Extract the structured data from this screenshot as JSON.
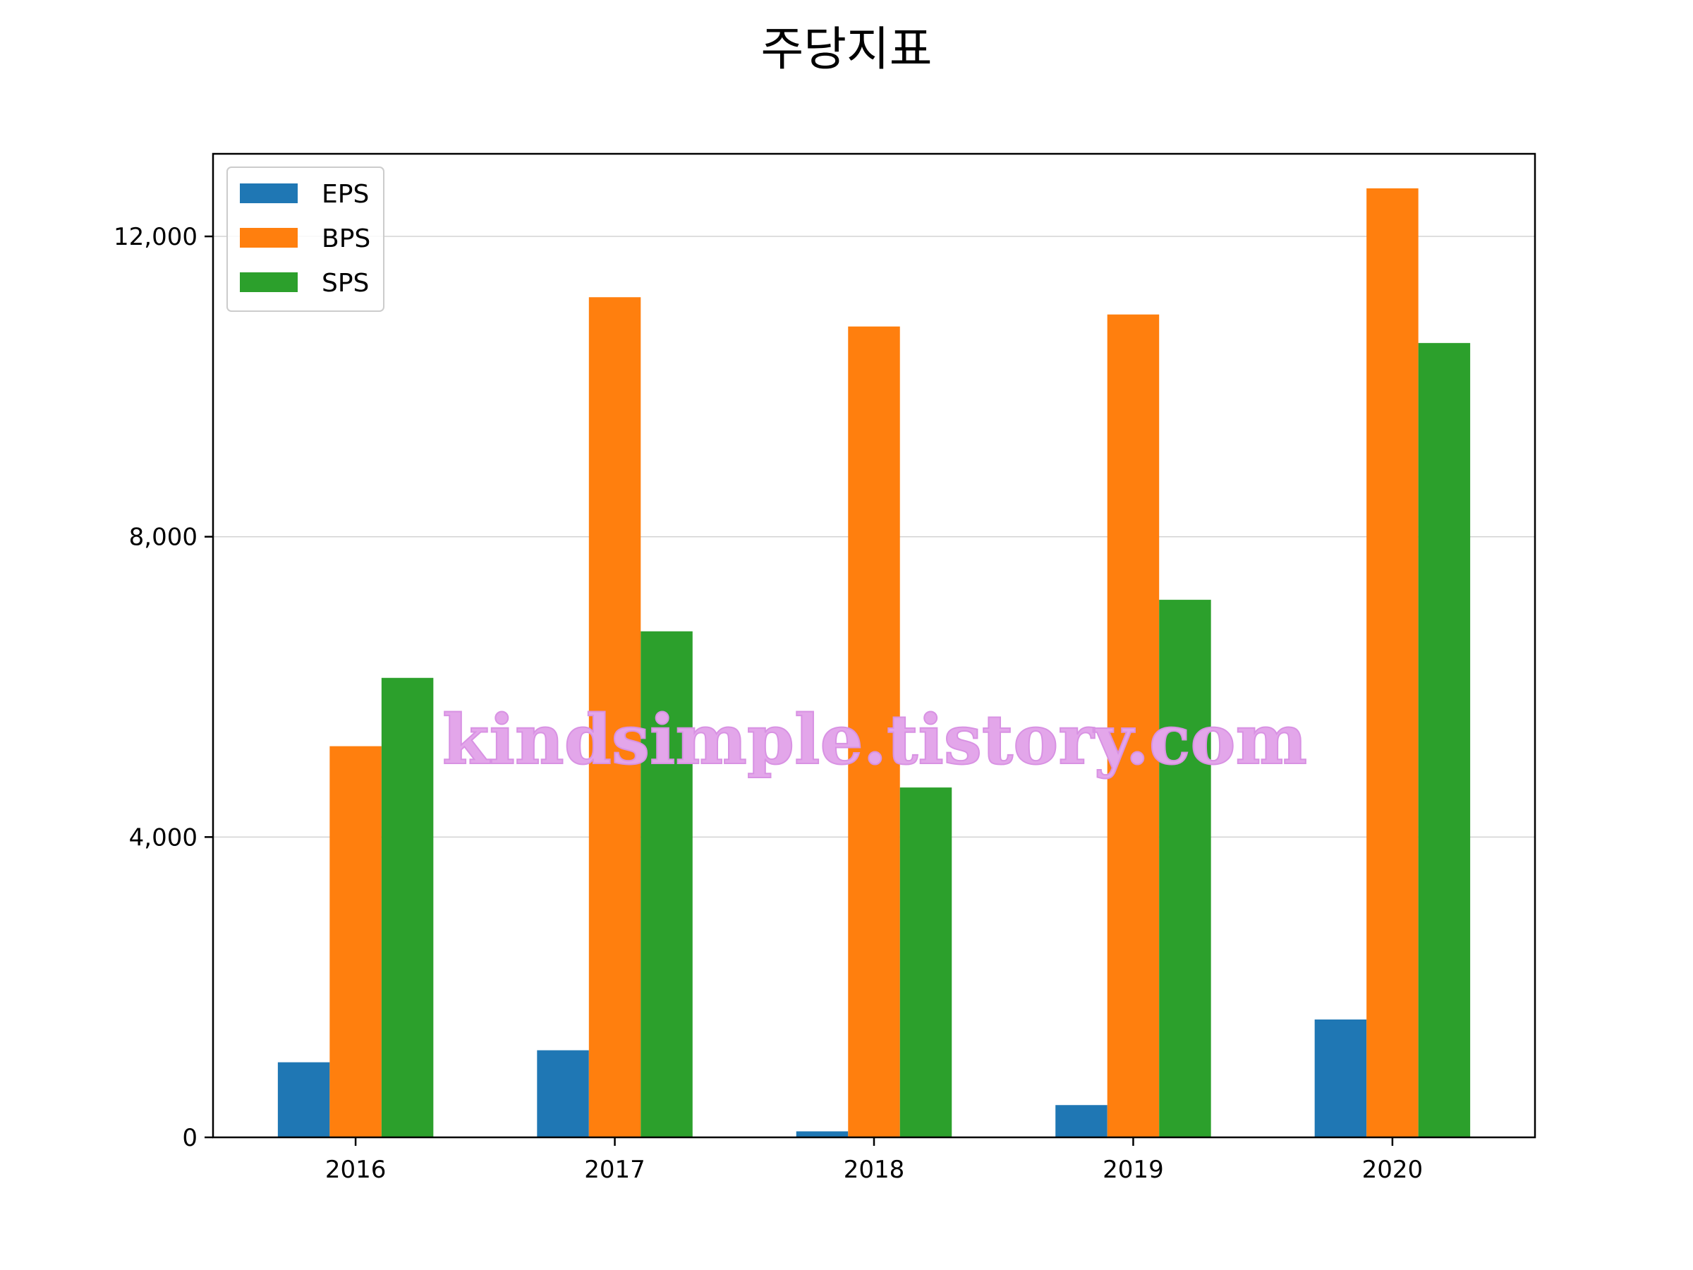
{
  "colors": {
    "eps": "#1f77b4",
    "bps": "#ff7f0e",
    "sps": "#2ca02c",
    "grid": "#d3d3d3",
    "watermark": "#e3a6ea"
  },
  "watermark": "kindsimple.tistory.com",
  "chart_data": {
    "type": "bar",
    "title": "주당지표",
    "xlabel": "",
    "ylabel": "",
    "categories": [
      "2016",
      "2017",
      "2018",
      "2019",
      "2020"
    ],
    "series": [
      {
        "name": "EPS",
        "values": [
          1000,
          1160,
          80,
          430,
          1570
        ]
      },
      {
        "name": "BPS",
        "values": [
          5210,
          11190,
          10800,
          10960,
          12640
        ]
      },
      {
        "name": "SPS",
        "values": [
          6120,
          6740,
          4660,
          7160,
          10580
        ]
      }
    ],
    "ylim": [
      0,
      13100
    ],
    "yticks": [
      0,
      4000,
      8000,
      12000
    ],
    "ytick_labels": [
      "0",
      "4,000",
      "8,000",
      "12,000"
    ],
    "grid": "y",
    "legend": "top-left"
  }
}
